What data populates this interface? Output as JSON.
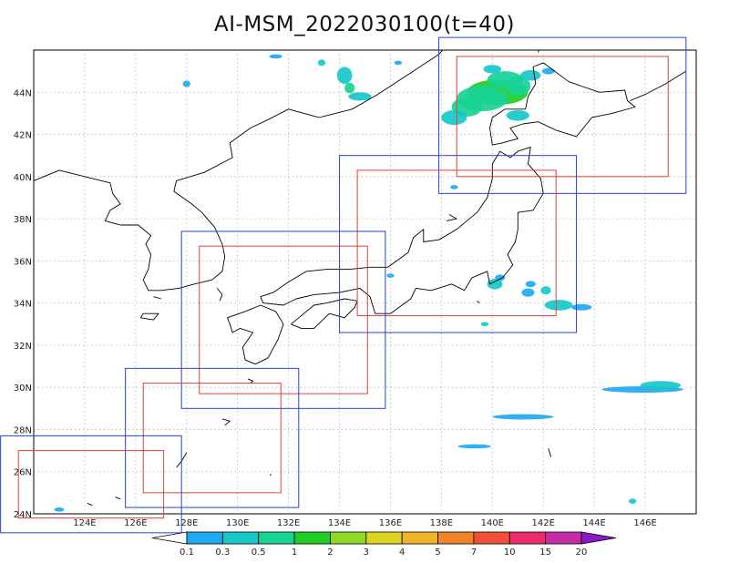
{
  "title": "AI-MSM_2022030100(t=40)",
  "map": {
    "lon_range": [
      122,
      148
    ],
    "lat_range": [
      24,
      46
    ],
    "lat_ticks": [
      {
        "value": 24,
        "label": "24N"
      },
      {
        "value": 26,
        "label": "26N"
      },
      {
        "value": 28,
        "label": "28N"
      },
      {
        "value": 30,
        "label": "30N"
      },
      {
        "value": 32,
        "label": "32N"
      },
      {
        "value": 34,
        "label": "34N"
      },
      {
        "value": 36,
        "label": "36N"
      },
      {
        "value": 38,
        "label": "38N"
      },
      {
        "value": 40,
        "label": "40N"
      },
      {
        "value": 42,
        "label": "42N"
      },
      {
        "value": 44,
        "label": "44N"
      }
    ],
    "lon_ticks": [
      {
        "value": 124,
        "label": "124E"
      },
      {
        "value": 126,
        "label": "126E"
      },
      {
        "value": 128,
        "label": "128E"
      },
      {
        "value": 130,
        "label": "130E"
      },
      {
        "value": 132,
        "label": "132E"
      },
      {
        "value": 134,
        "label": "134E"
      },
      {
        "value": 136,
        "label": "136E"
      },
      {
        "value": 138,
        "label": "138E"
      },
      {
        "value": 140,
        "label": "140E"
      },
      {
        "value": 142,
        "label": "142E"
      },
      {
        "value": 144,
        "label": "144E"
      },
      {
        "value": 146,
        "label": "146E"
      }
    ],
    "grid": true
  },
  "regions": [
    {
      "name": "hokkaido",
      "outer": [
        137.9,
        147.6,
        39.2,
        46.6
      ],
      "inner": [
        138.6,
        146.9,
        40.0,
        45.7
      ]
    },
    {
      "name": "tohoku",
      "outer": [
        134.0,
        143.3,
        32.6,
        41.0
      ],
      "inner": [
        134.7,
        142.5,
        33.4,
        40.3
      ]
    },
    {
      "name": "kinki",
      "outer": [
        127.8,
        135.8,
        29.0,
        37.4
      ],
      "inner": [
        128.5,
        135.1,
        29.7,
        36.7
      ]
    },
    {
      "name": "kyushu",
      "outer": [
        125.6,
        132.4,
        24.3,
        30.9
      ],
      "inner": [
        126.3,
        131.7,
        25.0,
        30.2
      ]
    },
    {
      "name": "okinawa",
      "outer": [
        120.7,
        127.8,
        23.1,
        27.7
      ],
      "inner": [
        121.4,
        127.1,
        23.8,
        27.0
      ]
    }
  ],
  "region_colors": {
    "outer": "#2b3fd6",
    "inner": "#e0403c"
  },
  "colorbar": {
    "levels": [
      "0.1",
      "0.3",
      "0.5",
      "1",
      "2",
      "3",
      "4",
      "5",
      "7",
      "10",
      "15",
      "20"
    ],
    "colors": [
      "#ffffff",
      "#1fa9f0",
      "#16c8c8",
      "#18d396",
      "#1fcd26",
      "#8ed926",
      "#dcd622",
      "#efb42a",
      "#f0842a",
      "#f04f3a",
      "#ed2b6d",
      "#c62ba8",
      "#8a18c8"
    ]
  },
  "precip": [
    {
      "lon": 140.2,
      "lat": 44.0,
      "w": 2.4,
      "h": 1.2,
      "level": 4
    },
    {
      "lon": 139.6,
      "lat": 43.7,
      "w": 2.0,
      "h": 1.2,
      "level": 3
    },
    {
      "lon": 140.5,
      "lat": 44.6,
      "w": 1.4,
      "h": 0.8,
      "level": 3
    },
    {
      "lon": 141.0,
      "lat": 44.3,
      "w": 1.0,
      "h": 0.9,
      "level": 3
    },
    {
      "lon": 139.0,
      "lat": 43.3,
      "w": 1.2,
      "h": 0.9,
      "level": 3
    },
    {
      "lon": 138.5,
      "lat": 42.8,
      "w": 1.0,
      "h": 0.7,
      "level": 2
    },
    {
      "lon": 141.0,
      "lat": 42.9,
      "w": 0.9,
      "h": 0.5,
      "level": 2
    },
    {
      "lon": 141.5,
      "lat": 44.8,
      "w": 0.8,
      "h": 0.5,
      "level": 2
    },
    {
      "lon": 140.0,
      "lat": 45.1,
      "w": 0.7,
      "h": 0.4,
      "level": 2
    },
    {
      "lon": 142.2,
      "lat": 45.0,
      "w": 0.5,
      "h": 0.3,
      "level": 1
    },
    {
      "lon": 134.2,
      "lat": 44.8,
      "w": 0.6,
      "h": 0.8,
      "level": 2
    },
    {
      "lon": 134.4,
      "lat": 44.2,
      "w": 0.4,
      "h": 0.5,
      "level": 3
    },
    {
      "lon": 134.8,
      "lat": 43.8,
      "w": 0.9,
      "h": 0.4,
      "level": 2
    },
    {
      "lon": 133.3,
      "lat": 45.4,
      "w": 0.3,
      "h": 0.3,
      "level": 2
    },
    {
      "lon": 131.5,
      "lat": 45.7,
      "w": 0.5,
      "h": 0.2,
      "level": 1
    },
    {
      "lon": 136.3,
      "lat": 45.4,
      "w": 0.3,
      "h": 0.2,
      "level": 1
    },
    {
      "lon": 128.0,
      "lat": 44.4,
      "w": 0.3,
      "h": 0.3,
      "level": 1
    },
    {
      "lon": 140.1,
      "lat": 34.9,
      "w": 0.6,
      "h": 0.5,
      "level": 2
    },
    {
      "lon": 140.3,
      "lat": 35.2,
      "w": 0.4,
      "h": 0.3,
      "level": 1
    },
    {
      "lon": 141.5,
      "lat": 34.9,
      "w": 0.4,
      "h": 0.3,
      "level": 1
    },
    {
      "lon": 141.4,
      "lat": 34.5,
      "w": 0.5,
      "h": 0.4,
      "level": 1
    },
    {
      "lon": 142.1,
      "lat": 34.6,
      "w": 0.4,
      "h": 0.4,
      "level": 2
    },
    {
      "lon": 142.6,
      "lat": 33.9,
      "w": 1.1,
      "h": 0.5,
      "level": 2
    },
    {
      "lon": 143.5,
      "lat": 33.8,
      "w": 0.8,
      "h": 0.3,
      "level": 1
    },
    {
      "lon": 139.7,
      "lat": 33.0,
      "w": 0.3,
      "h": 0.2,
      "level": 2
    },
    {
      "lon": 136.0,
      "lat": 35.3,
      "w": 0.3,
      "h": 0.2,
      "level": 1
    },
    {
      "lon": 138.5,
      "lat": 39.5,
      "w": 0.3,
      "h": 0.2,
      "level": 1
    },
    {
      "lon": 145.9,
      "lat": 29.9,
      "w": 3.2,
      "h": 0.3,
      "level": 1
    },
    {
      "lon": 146.6,
      "lat": 30.1,
      "w": 1.6,
      "h": 0.4,
      "level": 2
    },
    {
      "lon": 141.2,
      "lat": 28.6,
      "w": 2.4,
      "h": 0.25,
      "level": 1
    },
    {
      "lon": 139.3,
      "lat": 27.2,
      "w": 1.3,
      "h": 0.2,
      "level": 1
    },
    {
      "lon": 145.5,
      "lat": 24.6,
      "w": 0.3,
      "h": 0.25,
      "level": 2
    },
    {
      "lon": 123.0,
      "lat": 24.2,
      "w": 0.4,
      "h": 0.2,
      "level": 1
    }
  ],
  "coast": {
    "mainland": [
      [
        122.0,
        39.8
      ],
      [
        123.0,
        40.3
      ],
      [
        124.0,
        40.0
      ],
      [
        125.0,
        39.7
      ],
      [
        125.1,
        39.2
      ],
      [
        125.4,
        38.7
      ],
      [
        125.0,
        38.4
      ],
      [
        124.8,
        37.9
      ],
      [
        125.4,
        37.7
      ],
      [
        126.1,
        37.7
      ],
      [
        126.6,
        37.2
      ],
      [
        126.4,
        36.8
      ],
      [
        126.6,
        36.3
      ],
      [
        126.5,
        35.6
      ],
      [
        126.3,
        35.1
      ],
      [
        126.5,
        34.6
      ],
      [
        127.0,
        34.6
      ],
      [
        127.7,
        34.7
      ],
      [
        128.3,
        34.9
      ],
      [
        129.0,
        35.1
      ],
      [
        129.4,
        35.5
      ],
      [
        129.5,
        36.2
      ],
      [
        129.4,
        36.8
      ],
      [
        129.1,
        37.6
      ],
      [
        128.6,
        38.3
      ],
      [
        128.2,
        38.7
      ],
      [
        127.5,
        39.3
      ],
      [
        127.6,
        39.8
      ],
      [
        128.7,
        40.2
      ],
      [
        129.8,
        40.9
      ],
      [
        129.7,
        41.6
      ],
      [
        130.5,
        42.3
      ],
      [
        131.2,
        42.7
      ],
      [
        132.0,
        43.2
      ],
      [
        133.2,
        42.8
      ],
      [
        134.5,
        43.2
      ],
      [
        135.5,
        43.9
      ],
      [
        136.9,
        45.0
      ],
      [
        137.9,
        45.8
      ],
      [
        138.5,
        46.6
      ]
    ],
    "bays": [
      [
        122.0,
        40.8
      ],
      [
        121.8,
        40.8
      ]
    ],
    "honshu": [
      [
        141.5,
        41.4
      ],
      [
        141.4,
        40.6
      ],
      [
        141.9,
        39.9
      ],
      [
        142.0,
        39.2
      ],
      [
        141.6,
        38.4
      ],
      [
        141.0,
        38.3
      ],
      [
        141.0,
        37.5
      ],
      [
        140.9,
        36.9
      ],
      [
        140.6,
        36.3
      ],
      [
        140.8,
        35.8
      ],
      [
        140.4,
        35.2
      ],
      [
        139.9,
        34.9
      ],
      [
        139.8,
        35.5
      ],
      [
        139.2,
        35.2
      ],
      [
        138.9,
        34.6
      ],
      [
        138.4,
        34.9
      ],
      [
        137.6,
        34.6
      ],
      [
        137.0,
        34.7
      ],
      [
        136.8,
        34.2
      ],
      [
        136.0,
        33.5
      ],
      [
        135.4,
        33.5
      ],
      [
        135.2,
        34.3
      ],
      [
        134.8,
        34.7
      ],
      [
        134.0,
        34.5
      ],
      [
        133.0,
        34.4
      ],
      [
        132.3,
        34.2
      ],
      [
        131.8,
        33.9
      ],
      [
        131.0,
        34.0
      ],
      [
        130.9,
        34.3
      ],
      [
        131.4,
        34.5
      ],
      [
        132.0,
        35.0
      ],
      [
        132.7,
        35.5
      ],
      [
        133.5,
        35.6
      ],
      [
        134.4,
        35.6
      ],
      [
        135.2,
        35.7
      ],
      [
        135.9,
        35.7
      ],
      [
        136.7,
        36.4
      ],
      [
        136.9,
        37.1
      ],
      [
        137.3,
        37.5
      ],
      [
        137.3,
        36.9
      ],
      [
        137.9,
        37.0
      ],
      [
        138.6,
        37.5
      ],
      [
        139.4,
        38.3
      ],
      [
        139.8,
        39.0
      ],
      [
        140.0,
        39.9
      ],
      [
        140.0,
        40.6
      ],
      [
        140.3,
        41.2
      ],
      [
        140.7,
        40.9
      ],
      [
        141.0,
        41.2
      ],
      [
        141.5,
        41.4
      ]
    ],
    "hokkaido": [
      [
        140.0,
        41.5
      ],
      [
        140.4,
        41.6
      ],
      [
        141.0,
        41.8
      ],
      [
        140.7,
        42.3
      ],
      [
        141.2,
        42.5
      ],
      [
        141.8,
        42.6
      ],
      [
        142.5,
        42.2
      ],
      [
        143.3,
        41.9
      ],
      [
        143.9,
        42.8
      ],
      [
        144.7,
        43.0
      ],
      [
        145.6,
        43.3
      ],
      [
        145.3,
        43.6
      ],
      [
        145.2,
        44.1
      ],
      [
        144.2,
        44.0
      ],
      [
        143.0,
        44.5
      ],
      [
        142.0,
        45.4
      ],
      [
        141.6,
        45.2
      ],
      [
        141.7,
        44.4
      ],
      [
        141.4,
        43.8
      ],
      [
        141.3,
        43.2
      ],
      [
        140.5,
        43.2
      ],
      [
        140.0,
        42.8
      ],
      [
        139.9,
        42.3
      ],
      [
        140.0,
        41.5
      ]
    ],
    "sakhalin": [
      [
        141.8,
        45.9
      ],
      [
        142.0,
        46.6
      ],
      [
        142.4,
        46.6
      ],
      [
        142.5,
        46.0
      ],
      [
        142.8,
        46.6
      ]
    ],
    "kuril": [
      [
        145.4,
        43.6
      ],
      [
        146.0,
        43.9
      ],
      [
        146.8,
        44.4
      ],
      [
        147.6,
        45.0
      ]
    ],
    "shikoku": [
      [
        132.1,
        33.0
      ],
      [
        132.6,
        33.5
      ],
      [
        133.0,
        33.9
      ],
      [
        133.5,
        34.0
      ],
      [
        134.2,
        34.2
      ],
      [
        134.7,
        34.1
      ],
      [
        134.6,
        33.8
      ],
      [
        134.2,
        33.3
      ],
      [
        133.6,
        33.5
      ],
      [
        133.0,
        32.8
      ],
      [
        132.5,
        32.8
      ],
      [
        132.1,
        33.0
      ]
    ],
    "kyushu": [
      [
        129.6,
        33.3
      ],
      [
        130.3,
        33.6
      ],
      [
        130.9,
        33.9
      ],
      [
        131.5,
        33.6
      ],
      [
        131.8,
        33.0
      ],
      [
        131.6,
        32.3
      ],
      [
        131.2,
        31.4
      ],
      [
        130.7,
        31.1
      ],
      [
        130.3,
        31.3
      ],
      [
        130.2,
        31.9
      ],
      [
        130.6,
        32.6
      ],
      [
        130.1,
        32.8
      ],
      [
        129.8,
        32.6
      ],
      [
        129.7,
        33.0
      ],
      [
        129.6,
        33.3
      ]
    ],
    "islands": [
      [
        [
          129.2,
          34.7
        ],
        [
          129.4,
          34.4
        ],
        [
          129.3,
          34.1
        ]
      ],
      [
        [
          130.4,
          30.4
        ],
        [
          130.6,
          30.3
        ],
        [
          130.5,
          30.2
        ]
      ],
      [
        [
          129.4,
          28.5
        ],
        [
          129.7,
          28.4
        ],
        [
          129.5,
          28.2
        ]
      ],
      [
        [
          128.0,
          26.9
        ],
        [
          127.8,
          26.5
        ],
        [
          127.6,
          26.2
        ]
      ],
      [
        [
          124.1,
          24.5
        ],
        [
          124.3,
          24.4
        ]
      ],
      [
        [
          125.2,
          24.8
        ],
        [
          125.4,
          24.7
        ]
      ],
      [
        [
          126.7,
          34.3
        ],
        [
          127.0,
          34.2
        ]
      ],
      [
        [
          126.3,
          33.5
        ],
        [
          126.9,
          33.5
        ],
        [
          126.7,
          33.2
        ],
        [
          126.2,
          33.3
        ],
        [
          126.3,
          33.5
        ]
      ],
      [
        [
          138.3,
          38.2
        ],
        [
          138.6,
          38.0
        ],
        [
          138.2,
          37.9
        ]
      ],
      [
        [
          139.4,
          34.1
        ],
        [
          139.5,
          34.0
        ]
      ],
      [
        [
          142.2,
          27.1
        ],
        [
          142.3,
          26.7
        ]
      ],
      [
        [
          131.3,
          25.9
        ],
        [
          131.3,
          25.8
        ]
      ]
    ]
  }
}
